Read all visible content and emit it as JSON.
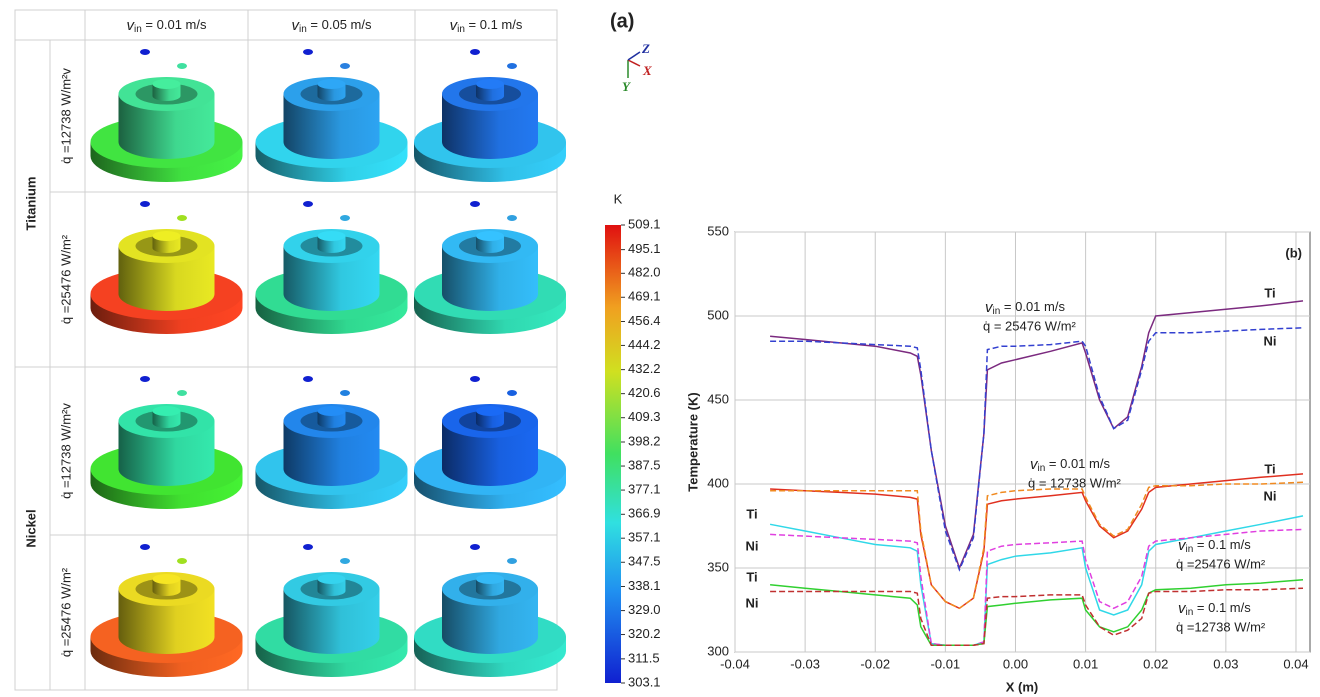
{
  "panel_a": {
    "label": "(a)",
    "columns": [
      {
        "v": "v",
        "sub": "in",
        "rest": " = 0.01 m/s"
      },
      {
        "v": "v",
        "sub": "in",
        "rest": " = 0.05 m/s"
      },
      {
        "v": "v",
        "sub": "in",
        "rest": " = 0.1 m/s"
      }
    ],
    "groups": [
      {
        "name": "Titanium",
        "rows": [
          "q̇ =12738 W/m²v",
          "q̇ =25476 W/m²"
        ]
      },
      {
        "name": "Nickel",
        "rows": [
          "q̇ =12738 W/m²v",
          "q̇ =25476 W/m²"
        ]
      }
    ],
    "axes": [
      "Z",
      "X",
      "Y"
    ]
  },
  "chart_data": [
    {
      "type": "colorbar",
      "title": "K",
      "ylim": [
        303.1,
        509.1
      ],
      "log_scale": true,
      "yticks": [
        509.1,
        495.1,
        {
          "value": 482,
          "label": "482.0"
        },
        469.1,
        456.4,
        444.2,
        432.2,
        420.6,
        409.3,
        398.2,
        387.5,
        377.1,
        366.9,
        357.1,
        347.5,
        338.1,
        {
          "value": 329,
          "label": "329.0"
        },
        320.2,
        311.5,
        303.1
      ]
    },
    {
      "type": "line",
      "label": "(b)",
      "x_label": "X (m)",
      "y_label": "Temperature (K)",
      "grid": true,
      "xlim": [
        -0.04,
        0.042
      ],
      "ylim": [
        300,
        550
      ],
      "xticks": [
        -0.04,
        -0.03,
        -0.02,
        -0.01,
        {
          "value": 0,
          "label": "0.00"
        },
        0.01,
        0.02,
        0.03,
        0.04
      ],
      "yticks": [
        300,
        350,
        400,
        450,
        500,
        550
      ],
      "x": [
        -0.035,
        -0.03,
        -0.025,
        -0.02,
        -0.015,
        -0.014,
        -0.0135,
        -0.012,
        -0.01,
        -0.008,
        -0.006,
        -0.0045,
        -0.004,
        -0.002,
        0,
        0.005,
        0.0095,
        0.01,
        0.012,
        0.014,
        0.016,
        0.018,
        0.019,
        0.02,
        0.025,
        0.03,
        0.035,
        0.041
      ],
      "series": [
        {
          "name": "Ti",
          "color": "#7b2a7f",
          "dashed": false,
          "values": [
            488,
            486,
            484,
            482,
            478,
            476,
            465,
            420,
            375,
            350,
            370,
            430,
            468,
            472,
            474,
            479,
            484,
            478,
            450,
            433,
            440,
            470,
            490,
            500,
            502,
            504,
            506,
            509
          ]
        },
        {
          "name": "Ni",
          "color": "#3340d0",
          "dashed": true,
          "values": [
            485,
            485,
            484,
            483,
            482,
            481,
            468,
            420,
            372,
            349,
            368,
            430,
            480,
            482,
            482,
            483,
            485,
            482,
            452,
            433,
            438,
            468,
            485,
            490,
            490,
            491,
            492,
            493
          ]
        },
        {
          "name": "Ti",
          "color": "#e03020",
          "dashed": false,
          "values": [
            397,
            396,
            395,
            394,
            392,
            391,
            370,
            340,
            330,
            326,
            332,
            360,
            388,
            390,
            391,
            393,
            395,
            390,
            375,
            368,
            372,
            385,
            395,
            398,
            400,
            402,
            404,
            406
          ]
        },
        {
          "name": "Ni",
          "color": "#f08a20",
          "dashed": true,
          "values": [
            396,
            396,
            396,
            396,
            396,
            396,
            372,
            340,
            330,
            326,
            332,
            362,
            393,
            395,
            396,
            397,
            397,
            392,
            376,
            369,
            373,
            388,
            398,
            399,
            399,
            400,
            400,
            401
          ]
        },
        {
          "name": "Ti",
          "color": "#30d8e8",
          "dashed": false,
          "values": [
            376,
            372,
            368,
            364,
            362,
            360,
            340,
            305,
            304,
            304,
            304,
            306,
            352,
            355,
            357,
            359,
            362,
            350,
            325,
            322,
            325,
            340,
            360,
            364,
            368,
            372,
            376,
            381
          ]
        },
        {
          "name": "Ni",
          "color": "#e040e0",
          "dashed": true,
          "values": [
            370,
            369,
            368,
            367,
            366,
            365,
            345,
            305,
            304,
            304,
            304,
            306,
            360,
            363,
            364,
            365,
            366,
            355,
            330,
            326,
            330,
            345,
            363,
            366,
            368,
            370,
            372,
            373
          ]
        },
        {
          "name": "Ti",
          "color": "#30d030",
          "dashed": false,
          "values": [
            340,
            338,
            336,
            334,
            332,
            328,
            315,
            304,
            304,
            304,
            304,
            305,
            327,
            328,
            329,
            331,
            332,
            325,
            315,
            312,
            315,
            325,
            335,
            337,
            338,
            340,
            341,
            343
          ]
        },
        {
          "name": "Ni",
          "color": "#c03030",
          "dashed": true,
          "values": [
            336,
            336,
            336,
            336,
            336,
            335,
            320,
            304,
            304,
            304,
            304,
            305,
            332,
            333,
            333,
            334,
            334,
            328,
            315,
            310,
            313,
            320,
            335,
            336,
            336,
            337,
            337,
            338
          ]
        }
      ],
      "annotations": [
        {
          "v": "v",
          "sub": "in",
          "rest": " = 0.01 m/s",
          "q": "q̇ = 25476 W/m²"
        },
        {
          "v": "v",
          "sub": "in",
          "rest": " = 0.01 m/s",
          "q": "q̇ = 12738 W/m²"
        },
        {
          "v": "v",
          "sub": "in",
          "rest": " = 0.1 m/s",
          "q": "q̇ =25476 W/m²"
        },
        {
          "v": "v",
          "sub": "in",
          "rest": " = 0.1 m/s",
          "q": "q̇ =12738 W/m²"
        }
      ]
    }
  ]
}
